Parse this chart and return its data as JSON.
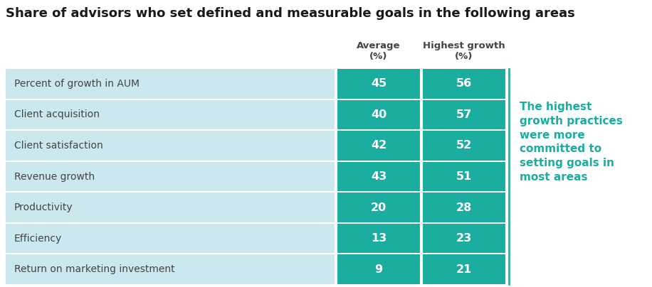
{
  "title": "Share of advisors who set defined and measurable goals in the following areas",
  "col_headers": [
    "Average\n(%)",
    "Highest growth\n(%)"
  ],
  "rows": [
    {
      "label": "Percent of growth in AUM",
      "average": 45,
      "highest": 56
    },
    {
      "label": "Client acquisition",
      "average": 40,
      "highest": 57
    },
    {
      "label": "Client satisfaction",
      "average": 42,
      "highest": 52
    },
    {
      "label": "Revenue growth",
      "average": 43,
      "highest": 51
    },
    {
      "label": "Productivity",
      "average": 20,
      "highest": 28
    },
    {
      "label": "Efficiency",
      "average": 13,
      "highest": 23
    },
    {
      "label": "Return on marketing investment",
      "average": 9,
      "highest": 21
    }
  ],
  "cell_bg_color": "#1AADA0",
  "row_bg_color": "#CCE8EF",
  "cell_text_color": "#FFFFFF",
  "row_text_color": "#444444",
  "title_color": "#1a1a1a",
  "header_text_color": "#444444",
  "annotation_color": "#1AADA0",
  "annotation_text": "The highest\ngrowth practices\nwere more\ncommitted to\nsetting goals in\nmost areas",
  "fig_bg_color": "#FFFFFF",
  "divider_color": "#3AADA0"
}
